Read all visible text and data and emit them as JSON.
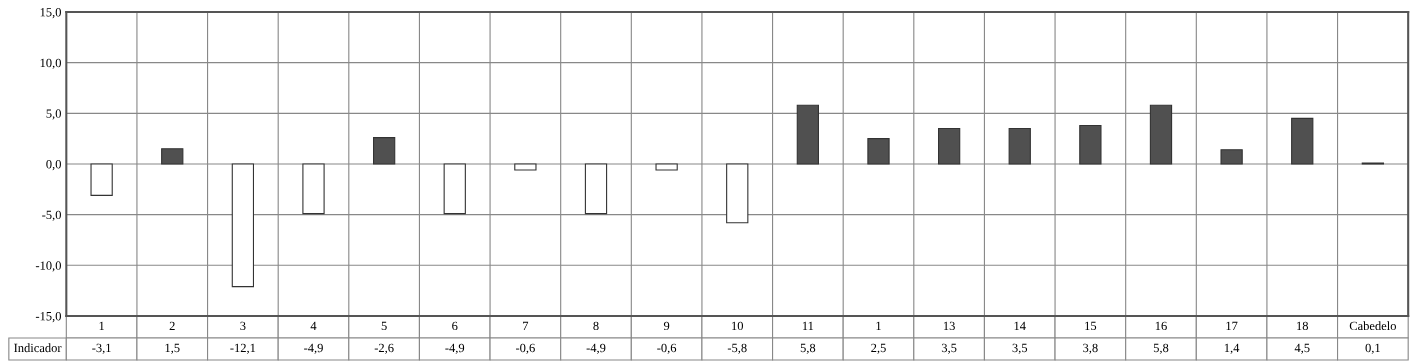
{
  "chart_data": {
    "type": "bar",
    "categories": [
      "1",
      "2",
      "3",
      "4",
      "5",
      "6",
      "7",
      "8",
      "9",
      "10",
      "11",
      "1",
      "13",
      "14",
      "15",
      "16",
      "17",
      "18",
      "Cabedelo"
    ],
    "series": [
      {
        "name": "Indicador",
        "values": [
          -3.1,
          1.5,
          -12.1,
          -4.9,
          2.6,
          -4.9,
          -0.6,
          -4.9,
          -0.6,
          -5.8,
          5.8,
          2.5,
          3.5,
          3.5,
          3.8,
          5.8,
          1.4,
          4.5,
          0.1
        ],
        "colors": [
          "#ffffff",
          "#505050",
          "#ffffff",
          "#ffffff",
          "#505050",
          "#ffffff",
          "#ffffff",
          "#ffffff",
          "#ffffff",
          "#ffffff",
          "#505050",
          "#505050",
          "#505050",
          "#505050",
          "#505050",
          "#505050",
          "#505050",
          "#505050",
          "#505050"
        ]
      }
    ],
    "annotations": [
      "-3,1",
      "1,5",
      "-12,1",
      "-4,9",
      "-2,6",
      "-4,9",
      "-0,6",
      "-4,9",
      "-0,6",
      "-5,8",
      "5,8",
      "2,5",
      "3,5",
      "3,5",
      "3,8",
      "5,8",
      "1,4",
      "4,5",
      "0,1"
    ],
    "ylim": [
      -15,
      15
    ],
    "yticks": [
      {
        "value": -15,
        "label": "-15,0"
      },
      {
        "value": -10,
        "label": "-10,0"
      },
      {
        "value": -5,
        "label": "-5,0"
      },
      {
        "value": 0,
        "label": "0,0"
      },
      {
        "value": 5,
        "label": "5,0"
      },
      {
        "value": 10,
        "label": "10,0"
      },
      {
        "value": 15,
        "label": "15,0"
      }
    ],
    "grid": true,
    "legend": false
  }
}
